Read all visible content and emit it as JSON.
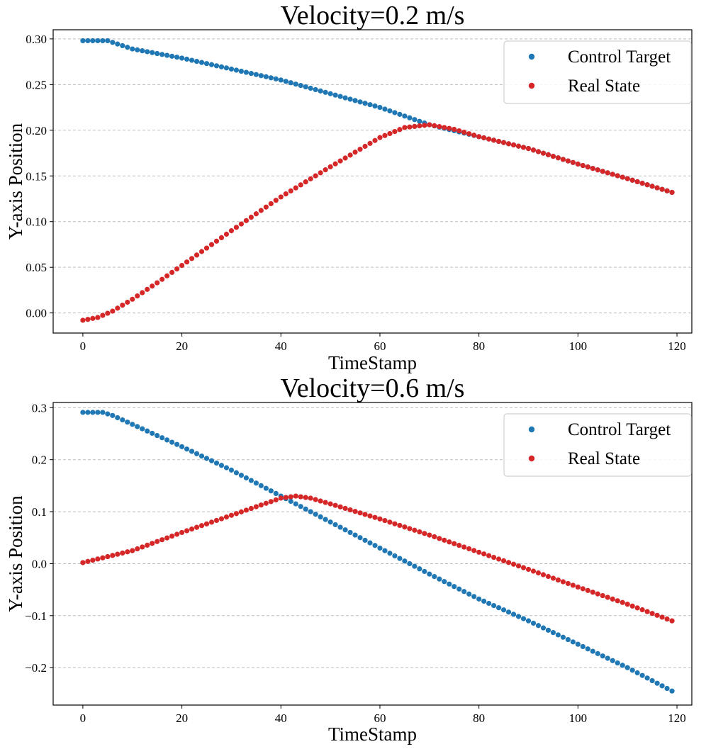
{
  "chart_data": [
    {
      "type": "scatter",
      "title": "Velocity=0.2 m/s",
      "xlabel": "TimeStamp",
      "ylabel": "Y-axis Position",
      "xlim": [
        -6,
        123
      ],
      "ylim": [
        -0.022,
        0.31
      ],
      "xticks": [
        0,
        20,
        40,
        60,
        80,
        100,
        120
      ],
      "yticks": [
        0.0,
        0.05,
        0.1,
        0.15,
        0.2,
        0.25,
        0.3
      ],
      "ytick_labels": [
        "0.00",
        "0.05",
        "0.10",
        "0.15",
        "0.20",
        "0.25",
        "0.30"
      ],
      "xtick_labels": [
        "0",
        "20",
        "40",
        "60",
        "80",
        "100",
        "120"
      ],
      "grid": "y-dashed",
      "legend_position": "top-right",
      "series": [
        {
          "name": "Control Target",
          "color": "#1f77b4",
          "points": [
            [
              0,
              0.298
            ],
            [
              5,
              0.298
            ],
            [
              10,
              0.289
            ],
            [
              20,
              0.279
            ],
            [
              30,
              0.267
            ],
            [
              40,
              0.255
            ],
            [
              50,
              0.24
            ],
            [
              60,
              0.225
            ],
            [
              70,
              0.206
            ],
            [
              80,
              0.193
            ],
            [
              90,
              0.18
            ],
            [
              100,
              0.163
            ],
            [
              110,
              0.147
            ],
            [
              119,
              0.132
            ]
          ]
        },
        {
          "name": "Real State",
          "color": "#d62728",
          "points": [
            [
              0,
              -0.008
            ],
            [
              3,
              -0.005
            ],
            [
              6,
              0.002
            ],
            [
              10,
              0.015
            ],
            [
              15,
              0.033
            ],
            [
              20,
              0.052
            ],
            [
              30,
              0.09
            ],
            [
              40,
              0.127
            ],
            [
              50,
              0.16
            ],
            [
              60,
              0.192
            ],
            [
              65,
              0.203
            ],
            [
              70,
              0.206
            ],
            [
              75,
              0.201
            ],
            [
              80,
              0.193
            ],
            [
              90,
              0.18
            ],
            [
              100,
              0.163
            ],
            [
              110,
              0.147
            ],
            [
              119,
              0.132
            ]
          ]
        }
      ]
    },
    {
      "type": "scatter",
      "title": "Velocity=0.6 m/s",
      "xlabel": "TimeStamp",
      "ylabel": "Y-axis Position",
      "xlim": [
        -6,
        123
      ],
      "ylim": [
        -0.272,
        0.31
      ],
      "xticks": [
        0,
        20,
        40,
        60,
        80,
        100,
        120
      ],
      "yticks": [
        -0.2,
        -0.1,
        0.0,
        0.1,
        0.2,
        0.3
      ],
      "ytick_labels": [
        "−0.2",
        "−0.1",
        "0.0",
        "0.1",
        "0.2",
        "0.3"
      ],
      "xtick_labels": [
        "0",
        "20",
        "40",
        "60",
        "80",
        "100",
        "120"
      ],
      "grid": "y-dashed",
      "legend_position": "top-right",
      "series": [
        {
          "name": "Control Target",
          "color": "#1f77b4",
          "points": [
            [
              0,
              0.291
            ],
            [
              4,
              0.291
            ],
            [
              6,
              0.285
            ],
            [
              10,
              0.268
            ],
            [
              20,
              0.225
            ],
            [
              30,
              0.18
            ],
            [
              40,
              0.13
            ],
            [
              50,
              0.08
            ],
            [
              60,
              0.03
            ],
            [
              70,
              -0.02
            ],
            [
              80,
              -0.068
            ],
            [
              90,
              -0.11
            ],
            [
              100,
              -0.155
            ],
            [
              110,
              -0.2
            ],
            [
              119,
              -0.245
            ]
          ]
        },
        {
          "name": "Real State",
          "color": "#d62728",
          "points": [
            [
              0,
              0.002
            ],
            [
              10,
              0.025
            ],
            [
              20,
              0.06
            ],
            [
              30,
              0.093
            ],
            [
              40,
              0.126
            ],
            [
              43,
              0.13
            ],
            [
              46,
              0.126
            ],
            [
              50,
              0.115
            ],
            [
              60,
              0.086
            ],
            [
              70,
              0.055
            ],
            [
              80,
              0.022
            ],
            [
              90,
              -0.011
            ],
            [
              100,
              -0.045
            ],
            [
              110,
              -0.078
            ],
            [
              119,
              -0.11
            ]
          ]
        }
      ]
    }
  ]
}
